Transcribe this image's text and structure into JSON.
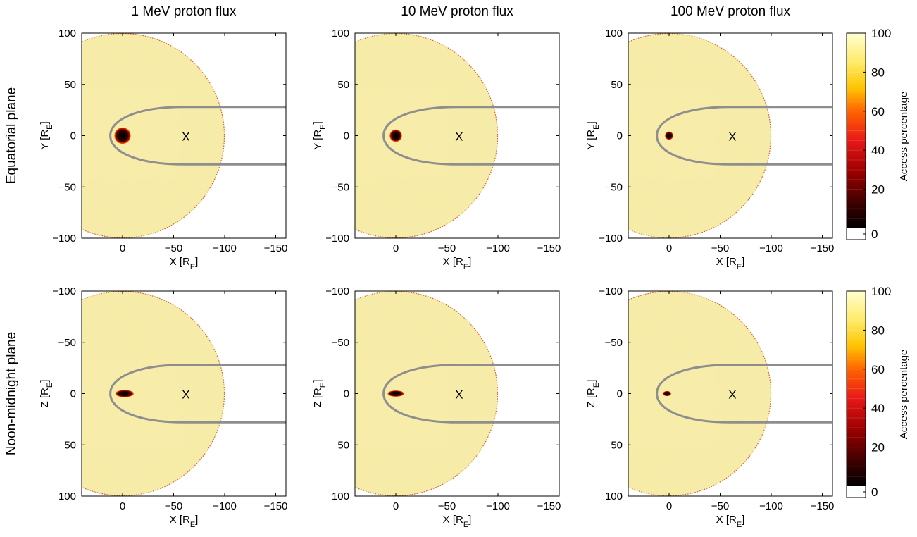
{
  "figure": {
    "column_titles": [
      "1 MeV proton flux",
      "10 MeV proton flux",
      "100 MeV proton flux"
    ],
    "row_titles": [
      "Equatorial plane",
      "Noon-midnight plane"
    ],
    "colorbar": {
      "label": "Access percentage",
      "ticks": [
        0,
        20,
        40,
        60,
        80,
        100
      ]
    },
    "colors": {
      "background_fill": "#f6ecaa",
      "boundary_line": "#8e8e8e",
      "dark_core": "#1a0000",
      "rim": "#c84020"
    },
    "marker_text": "X"
  },
  "chart_data": [
    {
      "type": "heatmap",
      "title": "1 MeV proton flux",
      "row": "Equatorial plane",
      "xlabel": "X [R_E]",
      "ylabel": "Y [R_E]",
      "xlim": [
        40,
        -160
      ],
      "ylim": [
        100,
        -100
      ],
      "xticks": [
        0,
        -50,
        -100,
        -150
      ],
      "yticks": [
        -100,
        -50,
        0,
        50,
        100
      ],
      "xtick_labels": [
        "0",
        "−50",
        "−100",
        "−150"
      ],
      "ytick_labels": [
        "−100",
        "−50",
        "0",
        "50",
        "100"
      ],
      "marker": {
        "label": "X",
        "x": -62,
        "y": 0
      },
      "dark_region": {
        "x": 0,
        "y": 0,
        "rx": 8,
        "ry": 8
      }
    },
    {
      "type": "heatmap",
      "title": "10 MeV proton flux",
      "row": "Equatorial plane",
      "xlabel": "X [R_E]",
      "ylabel": "Y [R_E]",
      "xlim": [
        40,
        -160
      ],
      "ylim": [
        100,
        -100
      ],
      "xticks": [
        0,
        -50,
        -100,
        -150
      ],
      "yticks": [
        -100,
        -50,
        0,
        50,
        100
      ],
      "xtick_labels": [
        "0",
        "−50",
        "−100",
        "−150"
      ],
      "ytick_labels": [
        "−100",
        "−50",
        "0",
        "50",
        "100"
      ],
      "marker": {
        "label": "X",
        "x": -62,
        "y": 0
      },
      "dark_region": {
        "x": 0,
        "y": 0,
        "rx": 6,
        "ry": 6
      }
    },
    {
      "type": "heatmap",
      "title": "100 MeV proton flux",
      "row": "Equatorial plane",
      "xlabel": "X [R_E]",
      "ylabel": "Y [R_E]",
      "xlim": [
        40,
        -160
      ],
      "ylim": [
        100,
        -100
      ],
      "xticks": [
        0,
        -50,
        -100,
        -150
      ],
      "yticks": [
        -100,
        -50,
        0,
        50,
        100
      ],
      "xtick_labels": [
        "0",
        "−50",
        "−100",
        "−150"
      ],
      "ytick_labels": [
        "−100",
        "−50",
        "0",
        "50",
        "100"
      ],
      "marker": {
        "label": "X",
        "x": -62,
        "y": 0
      },
      "dark_region": {
        "x": 0,
        "y": 0,
        "rx": 4,
        "ry": 4
      }
    },
    {
      "type": "heatmap",
      "title": "1 MeV proton flux",
      "row": "Noon-midnight plane",
      "xlabel": "X [R_E]",
      "ylabel": "Z [R_E]",
      "xlim": [
        40,
        -160
      ],
      "ylim": [
        -100,
        100
      ],
      "xticks": [
        0,
        -50,
        -100,
        -150
      ],
      "yticks": [
        -100,
        -50,
        0,
        50,
        100
      ],
      "xtick_labels": [
        "0",
        "−50",
        "−100",
        "−150"
      ],
      "ytick_labels": [
        "−100",
        "−50",
        "0",
        "50",
        "100"
      ],
      "marker": {
        "label": "X",
        "x": -62,
        "y": 0
      },
      "dark_region": {
        "x": -2,
        "y": 0,
        "rx": 9,
        "ry": 3.5
      }
    },
    {
      "type": "heatmap",
      "title": "10 MeV proton flux",
      "row": "Noon-midnight plane",
      "xlabel": "X [R_E]",
      "ylabel": "Z [R_E]",
      "xlim": [
        40,
        -160
      ],
      "ylim": [
        -100,
        100
      ],
      "xticks": [
        0,
        -50,
        -100,
        -150
      ],
      "yticks": [
        -100,
        -50,
        0,
        50,
        100
      ],
      "xtick_labels": [
        "0",
        "−50",
        "−100",
        "−150"
      ],
      "ytick_labels": [
        "−100",
        "−50",
        "0",
        "50",
        "100"
      ],
      "marker": {
        "label": "X",
        "x": -62,
        "y": 0
      },
      "dark_region": {
        "x": 0,
        "y": 0,
        "rx": 8,
        "ry": 3
      }
    },
    {
      "type": "heatmap",
      "title": "100 MeV proton flux",
      "row": "Noon-midnight plane",
      "xlabel": "X [R_E]",
      "ylabel": "Z [R_E]",
      "xlim": [
        40,
        -160
      ],
      "ylim": [
        -100,
        100
      ],
      "xticks": [
        0,
        -50,
        -100,
        -150
      ],
      "yticks": [
        -100,
        -50,
        0,
        50,
        100
      ],
      "xtick_labels": [
        "0",
        "−50",
        "−100",
        "−150"
      ],
      "ytick_labels": [
        "−100",
        "−50",
        "0",
        "50",
        "100"
      ],
      "marker": {
        "label": "X",
        "x": -62,
        "y": 0
      },
      "dark_region": {
        "x": 2,
        "y": 0,
        "rx": 4,
        "ry": 2.5
      }
    }
  ]
}
